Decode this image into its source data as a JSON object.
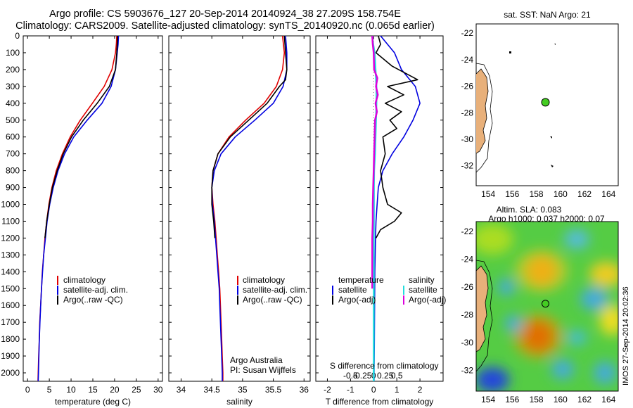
{
  "title": {
    "line1": "Argo profile: CS 5903676_127 20-Sep-2014 20140924_38 27.209S 158.754E",
    "line2": "Climatology: CARS2009. Satellite-adjusted climatology: synTS_20140920.nc (0.065d earlier)"
  },
  "colors": {
    "climatology": "#e00000",
    "satellite": "#0000e0",
    "argo": "#000000",
    "salinity_sat": "#22dddd",
    "salinity_argo": "#dd00dd",
    "land": "#e8b07a",
    "marker": "#44cc22"
  },
  "depth_axis": {
    "min": 0,
    "max": 2050,
    "ticks": [
      "0",
      "100",
      "200",
      "300",
      "400",
      "500",
      "600",
      "700",
      "800",
      "900",
      "1000",
      "1100",
      "1200",
      "1300",
      "1400",
      "1500",
      "1600",
      "1700",
      "1800",
      "1900",
      "2000"
    ]
  },
  "chart_data": [
    {
      "type": "line",
      "xlabel": "temperature (deg C)",
      "xlim": [
        -1,
        31
      ],
      "xticks": [
        "0",
        "5",
        "10",
        "15",
        "20",
        "25",
        "30"
      ],
      "y_inverted": true,
      "legend": [
        "climatology",
        "satellite-adj. clim.",
        "Argo(..raw -QC)"
      ],
      "series": [
        {
          "name": "climatology",
          "y": [
            0,
            50,
            100,
            200,
            300,
            400,
            500,
            600,
            700,
            800,
            900,
            1000,
            1100,
            1200,
            1300,
            1400,
            1500,
            1600,
            1700,
            1800,
            1900,
            2000,
            2050
          ],
          "x": [
            20.5,
            20.4,
            20.2,
            19.4,
            17.6,
            14.9,
            12.1,
            9.8,
            8.0,
            6.6,
            5.6,
            4.9,
            4.4,
            4.0,
            3.7,
            3.4,
            3.2,
            3.0,
            2.8,
            2.7,
            2.55,
            2.45,
            2.4
          ]
        },
        {
          "name": "satellite-adj. clim.",
          "y": [
            0,
            50,
            100,
            200,
            300,
            400,
            500,
            600,
            700,
            800,
            900,
            1000,
            1100,
            1200,
            1300,
            1400,
            1500,
            1600,
            1700,
            1800,
            1900,
            2000,
            2050
          ],
          "x": [
            20.9,
            20.8,
            20.6,
            20.2,
            19.2,
            17.1,
            13.7,
            10.6,
            8.5,
            7.0,
            5.9,
            5.1,
            4.5,
            4.1,
            3.7,
            3.45,
            3.2,
            3.0,
            2.85,
            2.7,
            2.6,
            2.5,
            2.45
          ]
        },
        {
          "name": "Argo(..raw -QC)",
          "y": [
            0,
            50,
            100,
            200,
            300,
            400,
            500,
            600,
            700,
            800,
            900,
            1000,
            1100,
            1200
          ],
          "x": [
            20.7,
            20.6,
            20.5,
            20.2,
            18.8,
            16.0,
            12.8,
            10.1,
            8.2,
            6.8,
            5.7,
            5.0,
            4.4,
            4.0
          ]
        }
      ]
    },
    {
      "type": "line",
      "xlabel": "salinity",
      "xlim": [
        33.8,
        36.1
      ],
      "xticks": [
        "34",
        "34.5",
        "35",
        "35.5",
        "36"
      ],
      "y_inverted": true,
      "legend": [
        "climatology",
        "satellite-adj. clim.",
        "Argo(..raw -QC)"
      ],
      "annotation": [
        "Argo Australia",
        "PI: Susan Wijffels"
      ],
      "series": [
        {
          "name": "climatology",
          "y": [
            0,
            100,
            200,
            300,
            400,
            500,
            600,
            700,
            800,
            900,
            1000,
            1100,
            1200,
            1300,
            1400,
            1500,
            1600,
            1700,
            1800,
            1900,
            2000,
            2050
          ],
          "x": [
            35.65,
            35.68,
            35.65,
            35.55,
            35.35,
            35.05,
            34.78,
            34.6,
            34.52,
            34.5,
            34.52,
            34.55,
            34.57,
            34.59,
            34.61,
            34.63,
            34.64,
            34.65,
            34.66,
            34.67,
            34.68,
            34.68
          ]
        },
        {
          "name": "satellite-adj. clim.",
          "y": [
            0,
            100,
            200,
            300,
            400,
            500,
            600,
            700,
            800,
            900,
            1000,
            1100,
            1200,
            1300,
            1400,
            1500,
            1600,
            1700,
            1800,
            1900,
            2000,
            2050
          ],
          "x": [
            35.7,
            35.72,
            35.72,
            35.66,
            35.5,
            35.2,
            34.88,
            34.65,
            34.54,
            34.5,
            34.51,
            34.54,
            34.56,
            34.58,
            34.6,
            34.62,
            34.63,
            34.64,
            34.65,
            34.66,
            34.67,
            34.67
          ]
        },
        {
          "name": "Argo(..raw -QC)",
          "y": [
            0,
            100,
            200,
            260,
            300,
            400,
            500,
            600,
            700,
            800,
            900,
            1000,
            1100,
            1200
          ],
          "x": [
            35.68,
            35.7,
            35.72,
            35.7,
            35.6,
            35.4,
            35.1,
            34.8,
            34.6,
            34.52,
            34.5,
            34.5,
            34.53,
            34.55
          ]
        }
      ]
    },
    {
      "type": "line",
      "xlabel": "T difference from climatology",
      "xlabel2": "S difference from climatology",
      "xlim": [
        -2.5,
        3
      ],
      "xticks": [
        "-2",
        "-1",
        "0",
        "1",
        "2"
      ],
      "xticks2": [
        "-0.5",
        "-0.25",
        "0",
        "0.25",
        "0.5"
      ],
      "y_inverted": true,
      "legend_headers": [
        "temperature",
        "salinity"
      ],
      "legend": [
        "satellite",
        "Argo(-adj)",
        "satellite",
        "Argo(-adj)"
      ],
      "series": [
        {
          "name": "temperature satellite",
          "y": [
            0,
            50,
            100,
            200,
            300,
            400,
            500,
            600,
            700,
            800,
            900,
            1000,
            1100,
            1200,
            1400,
            1600,
            1800,
            2000,
            2050
          ],
          "x": [
            0.3,
            0.6,
            0.9,
            1.2,
            1.8,
            2.0,
            1.7,
            1.3,
            0.8,
            0.4,
            0.2,
            0.15,
            0.1,
            0.08,
            0.05,
            0.04,
            0.03,
            0.02,
            0.02
          ]
        },
        {
          "name": "temperature Argo(-adj)",
          "y": [
            0,
            50,
            100,
            180,
            260,
            300,
            350,
            400,
            450,
            500,
            550,
            600,
            700,
            800,
            900,
            1000,
            1050,
            1100,
            1150,
            1200
          ],
          "x": [
            0.2,
            0.3,
            0.1,
            0.8,
            1.9,
            0.6,
            1.3,
            0.5,
            1.2,
            0.7,
            1.0,
            0.4,
            0.5,
            0.3,
            0.4,
            0.6,
            1.2,
            0.9,
            0.3,
            0.1
          ]
        },
        {
          "name": "salinity satellite",
          "y": [
            0,
            50,
            100,
            200,
            300,
            400,
            500,
            600,
            700,
            800,
            900,
            1000,
            1200,
            1400,
            1600,
            1800,
            2000,
            2050
          ],
          "x": [
            -0.03,
            -0.01,
            0.02,
            0.04,
            0.06,
            0.06,
            0.05,
            0.04,
            0.03,
            0.01,
            0.005,
            0.005,
            0.004,
            0.003,
            0.002,
            0.002,
            0.001,
            0.001
          ]
        },
        {
          "name": "salinity Argo(-adj)",
          "y": [
            0,
            50,
            100,
            200,
            250,
            300,
            350,
            400,
            450,
            500,
            600,
            700,
            800,
            900,
            1000,
            1100,
            1200,
            1300,
            1400,
            1500
          ],
          "x": [
            -0.03,
            -0.02,
            0.0,
            0.01,
            0.08,
            0.05,
            0.09,
            0.04,
            0.07,
            0.03,
            0.02,
            0.01,
            0.0,
            -0.01,
            -0.02,
            -0.02,
            -0.03,
            -0.03,
            -0.03,
            -0.03
          ]
        }
      ]
    }
  ],
  "map_top": {
    "title": "sat. SST: NaN Argo: 21",
    "xticks": [
      "154",
      "156",
      "158",
      "160",
      "162",
      "164"
    ],
    "yticks": [
      "-22",
      "-24",
      "-26",
      "-28",
      "-30",
      "-32"
    ],
    "lon_range": [
      153,
      164.8
    ],
    "lat_range": [
      -33.5,
      -21.3
    ],
    "marker": {
      "lon": 158.754,
      "lat": -27.209
    }
  },
  "map_bottom": {
    "title_line1": "Altim. SLA: 0.083",
    "title_line2": "Argo h1000: 0.037 h2000: 0.07",
    "xticks": [
      "154",
      "156",
      "158",
      "160",
      "162",
      "164"
    ],
    "yticks": [
      "-22",
      "-24",
      "-26",
      "-28",
      "-30",
      "-32"
    ],
    "lon_range": [
      153,
      164.8
    ],
    "lat_range": [
      -33.5,
      -21.3
    ],
    "marker": {
      "lon": 158.754,
      "lat": -27.209
    }
  },
  "credit": "IMOS 27-Sep-2014 20:02:36"
}
